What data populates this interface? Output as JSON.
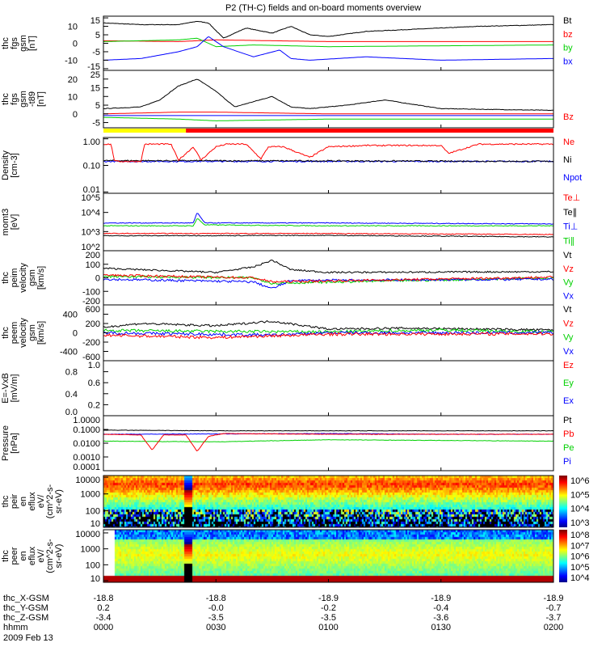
{
  "title": "P2 (TH-C) fields and on-board moments overview",
  "colors": {
    "black": "#000000",
    "red": "#ff0000",
    "green": "#00d000",
    "blue": "#0000ff",
    "yellow": "#ffff00"
  },
  "chart_data": [
    {
      "type": "line",
      "id": "fgs",
      "ylabel": [
        "thc",
        "fgs",
        "gsm",
        "[nT]"
      ],
      "ylim": [
        -16,
        16
      ],
      "yticks": [
        "15",
        "10",
        "5",
        "0",
        "-5",
        "-10",
        "-15"
      ],
      "ytickvals": [
        15,
        10,
        5,
        0,
        -5,
        -10,
        -15
      ],
      "scale": "linear",
      "legend": [
        {
          "name": "Bt",
          "color": "#000000"
        },
        {
          "name": "bz",
          "color": "#ff0000"
        },
        {
          "name": "by",
          "color": "#00d000"
        },
        {
          "name": "bx",
          "color": "#0000ff"
        }
      ],
      "series": [
        {
          "name": "Bt",
          "color": "#000000",
          "t": [
            0,
            10,
            20,
            25,
            28,
            32,
            38,
            45,
            50,
            55,
            60,
            70,
            80,
            100,
            120
          ],
          "y": [
            12,
            11,
            11,
            13,
            12,
            3,
            9,
            6,
            10,
            5,
            4,
            7,
            8,
            10,
            11
          ]
        },
        {
          "name": "bz",
          "color": "#ff0000",
          "t": [
            0,
            20,
            30,
            60,
            120
          ],
          "y": [
            1.5,
            1,
            2,
            1,
            1
          ]
        },
        {
          "name": "by",
          "color": "#00d000",
          "t": [
            0,
            20,
            25,
            30,
            40,
            60,
            120
          ],
          "y": [
            1,
            2,
            3,
            -2,
            -1,
            -2,
            -1
          ]
        },
        {
          "name": "bx",
          "color": "#0000ff",
          "t": [
            0,
            10,
            20,
            25,
            28,
            32,
            40,
            47,
            50,
            55,
            70,
            90,
            120
          ],
          "y": [
            -10,
            -9,
            -5,
            -2,
            4,
            -2,
            -8,
            -4,
            -9,
            -10,
            -8,
            -10,
            -9
          ]
        }
      ]
    },
    {
      "type": "line",
      "id": "fgs_t89",
      "ylabel": [
        "thc",
        "fgs",
        "gsm",
        "-t89",
        "[nT]"
      ],
      "ylim": [
        -8,
        25
      ],
      "yticks": [
        "25",
        "20",
        "15",
        "10",
        "5",
        "0",
        "-5"
      ],
      "ytickvals": [
        25,
        20,
        15,
        10,
        5,
        0,
        -5
      ],
      "scale": "linear",
      "legend": [
        {
          "name": "Bz",
          "color": "#ff0000"
        }
      ],
      "series": [
        {
          "name": "Bt",
          "color": "#000000",
          "t": [
            0,
            10,
            15,
            20,
            25,
            30,
            35,
            45,
            50,
            55,
            65,
            75,
            90,
            120
          ],
          "y": [
            3,
            4,
            8,
            16,
            20,
            13,
            4,
            10,
            4,
            3,
            5,
            8,
            3,
            2
          ]
        },
        {
          "name": "Bz",
          "color": "#ff0000",
          "t": [
            0,
            20,
            30,
            60,
            120
          ],
          "y": [
            0,
            1,
            1,
            0,
            0
          ]
        },
        {
          "name": "By",
          "color": "#00d000",
          "t": [
            0,
            20,
            30,
            60,
            120
          ],
          "y": [
            -2,
            -3,
            -4,
            -3,
            -3
          ]
        },
        {
          "name": "Bx",
          "color": "#0000ff",
          "t": [
            0,
            60,
            120
          ],
          "y": [
            -1,
            -1,
            -1
          ]
        }
      ]
    },
    {
      "type": "line",
      "id": "density",
      "ylabel": [
        "Density",
        "[cm-3]"
      ],
      "ylim": [
        -2.05,
        0.05
      ],
      "yticks": [
        "1.00",
        "0.10",
        "0.01"
      ],
      "ytickvals": [
        0,
        -1,
        -2
      ],
      "scale": "log10",
      "legend": [
        {
          "name": "Ne",
          "color": "#ff0000"
        },
        {
          "name": "Ni",
          "color": "#000000"
        },
        {
          "name": "Npot",
          "color": "#0000ff"
        }
      ],
      "series": [
        {
          "name": "Npot",
          "color": "#0000ff",
          "t": [
            0,
            60,
            120
          ],
          "y": [
            -0.85,
            -0.85,
            -0.85
          ]
        },
        {
          "name": "Ni",
          "color": "#000000",
          "t": [
            0,
            60,
            120
          ],
          "y": [
            -0.82,
            -0.83,
            -0.85
          ]
        },
        {
          "name": "Ne",
          "color": "#ff0000",
          "t": [
            0,
            2,
            3,
            10,
            11,
            18,
            20,
            24,
            26,
            30,
            33,
            38,
            42,
            44,
            48,
            55,
            60,
            70,
            90,
            92,
            100,
            120
          ],
          "y": [
            -0.2,
            -0.2,
            -0.85,
            -0.85,
            -0.2,
            -0.2,
            -0.8,
            -0.3,
            -0.8,
            -0.3,
            -0.2,
            -0.2,
            -0.75,
            -0.3,
            -0.3,
            -0.7,
            -0.3,
            -0.25,
            -0.25,
            -0.55,
            -0.2,
            -0.2
          ]
        }
      ]
    },
    {
      "type": "line",
      "id": "moments_T",
      "ylabel": [
        "momt3",
        "[eV]"
      ],
      "ylim": [
        2,
        5
      ],
      "yticks": [
        "10^5",
        "10^4",
        "10^3",
        "10^2"
      ],
      "ytickvals": [
        5,
        4,
        3,
        2
      ],
      "scale": "log10",
      "legend": [
        {
          "name": "Te⊥",
          "color": "#ff0000"
        },
        {
          "name": "Te∥",
          "color": "#000000"
        },
        {
          "name": "Ti⊥",
          "color": "#0000ff"
        },
        {
          "name": "Ti∥",
          "color": "#00d000"
        }
      ],
      "series": [
        {
          "name": "Ti∥",
          "color": "#00d000",
          "t": [
            0,
            24,
            25,
            27,
            60,
            120
          ],
          "y": [
            3.3,
            3.3,
            3.7,
            3.35,
            3.3,
            3.3
          ]
        },
        {
          "name": "Ti⊥",
          "color": "#0000ff",
          "t": [
            0,
            24,
            25,
            27,
            60,
            120
          ],
          "y": [
            3.45,
            3.45,
            4.0,
            3.45,
            3.45,
            3.4
          ]
        },
        {
          "name": "Te⊥",
          "color": "#ff0000",
          "t": [
            0,
            60,
            120
          ],
          "y": [
            2.9,
            2.9,
            2.85
          ]
        },
        {
          "name": "Te∥",
          "color": "#000000",
          "t": [
            0,
            60,
            120
          ],
          "y": [
            2.78,
            2.8,
            2.72
          ]
        }
      ]
    },
    {
      "type": "line",
      "id": "peim_velocity",
      "ylabel": [
        "thc",
        "peim",
        "velocity",
        "gsm",
        "[km/s]"
      ],
      "ylim": [
        -200,
        200
      ],
      "yticks": [
        "200",
        "100",
        "0",
        "-100",
        "-200"
      ],
      "ytickvals": [
        200,
        100,
        0,
        -100,
        -200
      ],
      "scale": "linear",
      "legend": [
        {
          "name": "Vt",
          "color": "#000000"
        },
        {
          "name": "Vz",
          "color": "#ff0000"
        },
        {
          "name": "Vy",
          "color": "#00d000"
        },
        {
          "name": "Vx",
          "color": "#0000ff"
        }
      ],
      "series": [
        {
          "name": "Vt",
          "color": "#000000",
          "t": [
            0,
            20,
            30,
            40,
            45,
            50,
            60,
            120
          ],
          "y": [
            70,
            50,
            40,
            80,
            130,
            60,
            40,
            45
          ]
        },
        {
          "name": "Vy",
          "color": "#00d000",
          "t": [
            0,
            40,
            45,
            120
          ],
          "y": [
            10,
            0,
            -40,
            0
          ]
        },
        {
          "name": "Vx",
          "color": "#0000ff",
          "t": [
            0,
            40,
            45,
            50,
            120
          ],
          "y": [
            -10,
            -30,
            -80,
            -20,
            -10
          ]
        },
        {
          "name": "Vz",
          "color": "#ff0000",
          "t": [
            0,
            40,
            45,
            120
          ],
          "y": [
            20,
            0,
            -30,
            5
          ]
        }
      ]
    },
    {
      "type": "line",
      "id": "peem_velocity",
      "ylabel": [
        "thc",
        "peem",
        "velocity",
        "gsm",
        "[km/s]"
      ],
      "ylim": [
        -600,
        600
      ],
      "yticks": [
        "600",
        "400",
        "200",
        "0",
        "-200",
        "-400",
        "-600"
      ],
      "ytickvals": [
        600,
        400,
        200,
        0,
        -200,
        -400,
        -600
      ],
      "scale": "linear",
      "legend": [
        {
          "name": "Vt",
          "color": "#000000"
        },
        {
          "name": "Vz",
          "color": "#ff0000"
        },
        {
          "name": "Vy",
          "color": "#00d000"
        },
        {
          "name": "Vx",
          "color": "#0000ff"
        }
      ],
      "series": [
        {
          "name": "Vt",
          "color": "#000000",
          "t": [
            0,
            10,
            30,
            45,
            60,
            80,
            120
          ],
          "y": [
            120,
            200,
            150,
            250,
            80,
            100,
            60
          ]
        },
        {
          "name": "Vy",
          "color": "#00d000",
          "t": [
            0,
            30,
            60,
            90,
            120
          ],
          "y": [
            50,
            30,
            20,
            60,
            20
          ]
        },
        {
          "name": "Vx",
          "color": "#0000ff",
          "t": [
            0,
            45,
            60,
            120
          ],
          "y": [
            0,
            -50,
            0,
            0
          ]
        },
        {
          "name": "Vz",
          "color": "#ff0000",
          "t": [
            0,
            30,
            60,
            120
          ],
          "y": [
            -50,
            -100,
            -30,
            -20
          ]
        }
      ]
    },
    {
      "type": "line",
      "id": "efield",
      "ylabel": [
        "E=-VxB",
        "[mV/m]"
      ],
      "ylim": [
        0,
        1
      ],
      "yticks": [
        "1.0",
        "0.8",
        "0.6",
        "0.4",
        "0.2",
        "0.0"
      ],
      "ytickvals": [
        1,
        0.8,
        0.6,
        0.4,
        0.2,
        0
      ],
      "scale": "linear",
      "legend": [
        {
          "name": "Ez",
          "color": "#ff0000"
        },
        {
          "name": "Ey",
          "color": "#00d000"
        },
        {
          "name": "Ex",
          "color": "#0000ff"
        }
      ],
      "series": []
    },
    {
      "type": "line",
      "id": "pressure",
      "ylabel": [
        "Pressure",
        "[nPa]"
      ],
      "ylim": [
        -4,
        0
      ],
      "yticks": [
        "1.0000",
        "0.1000",
        "0.0100",
        "0.0010",
        "0.0001"
      ],
      "ytickvals": [
        0,
        -1,
        -2,
        -3,
        -4
      ],
      "scale": "log10",
      "legend": [
        {
          "name": "Pt",
          "color": "#000000"
        },
        {
          "name": "Pb",
          "color": "#ff0000"
        },
        {
          "name": "Pe",
          "color": "#00d000"
        },
        {
          "name": "Pi",
          "color": "#0000ff"
        }
      ],
      "series": [
        {
          "name": "Pe",
          "color": "#00d000",
          "t": [
            0,
            30,
            60,
            120
          ],
          "y": [
            -1.85,
            -1.9,
            -1.75,
            -1.85
          ]
        },
        {
          "name": "Pi",
          "color": "#0000ff",
          "t": [
            0,
            60,
            90,
            120
          ],
          "y": [
            -1.35,
            -1.3,
            -1.35,
            -1.35
          ]
        },
        {
          "name": "Pb",
          "color": "#ff0000",
          "t": [
            0,
            10,
            13,
            16,
            22,
            25,
            28,
            32,
            60,
            120
          ],
          "y": [
            -1.35,
            -1.4,
            -2.5,
            -1.4,
            -1.4,
            -2.6,
            -1.5,
            -1.3,
            -1.35,
            -1.35
          ]
        },
        {
          "name": "Pt",
          "color": "#000000",
          "t": [
            0,
            30,
            60,
            120
          ],
          "y": [
            -1.05,
            -1.1,
            -1.1,
            -1.1
          ]
        }
      ]
    },
    {
      "type": "heatmap",
      "id": "peir_eflux",
      "ylabel": [
        "thc",
        "peir",
        "en",
        "eflux",
        "eV/",
        "(cm^2-s-",
        "sr-eV)"
      ],
      "ylim": [
        1,
        4.1
      ],
      "yticks": [
        "10000",
        "1000",
        "100",
        "10"
      ],
      "ytickvals": [
        4,
        3,
        2,
        1
      ],
      "scale": "log10",
      "colorbar": [
        "10^6",
        "10^5",
        "10^4",
        "10^3"
      ],
      "crange": [
        2.5,
        6.3
      ]
    },
    {
      "type": "heatmap",
      "id": "peer_eflux",
      "ylabel": [
        "thc",
        "peer",
        "en",
        "eflux",
        "eV/",
        "(cm^2-s-",
        "sr-eV)"
      ],
      "ylim": [
        0.9,
        4.2
      ],
      "yticks": [
        "10000",
        "1000",
        "100",
        "10"
      ],
      "ytickvals": [
        4,
        3,
        2,
        1
      ],
      "scale": "log10",
      "colorbar": [
        "10^8",
        "10^7",
        "10^6",
        "10^5",
        "10^4"
      ],
      "crange": [
        3.5,
        8.5
      ]
    }
  ],
  "mode_bar": {
    "segments": [
      {
        "t0": 0,
        "t1": 22,
        "color": "#ffff00"
      },
      {
        "t0": 22,
        "t1": 120,
        "color": "#ff0000"
      }
    ]
  },
  "x_axis": {
    "row_labels": [
      "thc_X-GSM",
      "thc_Y-GSM",
      "thc_Z-GSM",
      "hhmm"
    ],
    "date": "2009 Feb 13",
    "ticks": [
      {
        "t": 0,
        "values": [
          "-18.8",
          "0.2",
          "-3.4",
          "0000"
        ]
      },
      {
        "t": 30,
        "values": [
          "-18.8",
          "-0.0",
          "-3.5",
          "0030"
        ]
      },
      {
        "t": 60,
        "values": [
          "-18.9",
          "-0.2",
          "-3.5",
          "0100"
        ]
      },
      {
        "t": 90,
        "values": [
          "-18.9",
          "-0.4",
          "-3.6",
          "0130"
        ]
      },
      {
        "t": 120,
        "values": [
          "-18.9",
          "-0.7",
          "-3.7",
          "0200"
        ]
      }
    ]
  }
}
